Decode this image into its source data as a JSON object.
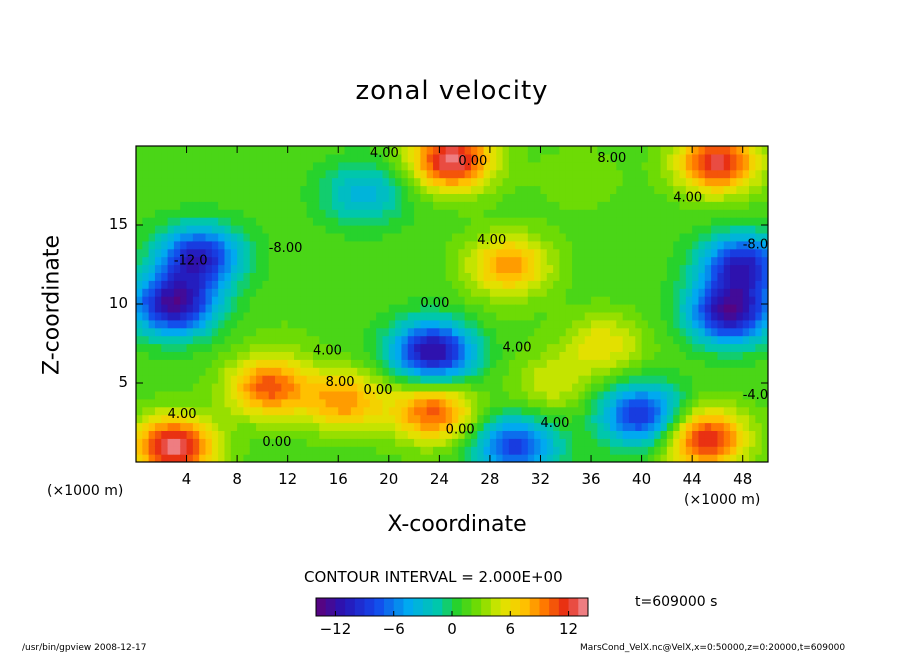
{
  "chart_data": {
    "type": "heatmap",
    "title": "zonal velocity",
    "xlabel": "X-coordinate",
    "ylabel": "Z-coordinate",
    "x_unit": "(×1000 m)",
    "y_unit": "(×1000 m)",
    "xlim": [
      0,
      50
    ],
    "ylim": [
      0,
      20
    ],
    "x_ticks": [
      "4",
      "8",
      "12",
      "16",
      "20",
      "24",
      "28",
      "32",
      "36",
      "40",
      "44",
      "48"
    ],
    "y_ticks": [
      "5",
      "10",
      "15"
    ],
    "contour_interval_text": "CONTOUR INTERVAL = 2.000E+00",
    "colorbar": {
      "range": [
        -14,
        14
      ],
      "ticks": [
        "−12",
        "−6",
        "0",
        "6",
        "12"
      ]
    },
    "contour_labels": [
      "4.00",
      "0.00",
      "-8.00",
      "-12.0",
      "4.00",
      "8.00",
      "0.00",
      "4.00",
      "0.00",
      "-8.00",
      "4.00",
      "0.00",
      "8.00",
      "4.00",
      "4.00",
      "0.00",
      "4.00",
      "-4.00"
    ],
    "features": [
      {
        "x": 10.5,
        "z": 4.8,
        "value": 11
      },
      {
        "x": 16.5,
        "z": 3.9,
        "value": 9
      },
      {
        "x": 23.5,
        "z": 3.2,
        "value": 11
      },
      {
        "x": 23.5,
        "z": 7.0,
        "value": -13
      },
      {
        "x": 29.5,
        "z": 12.5,
        "value": 9
      },
      {
        "x": 37.0,
        "z": 7.5,
        "value": 6
      },
      {
        "x": 3.0,
        "z": 10.0,
        "value": -13
      },
      {
        "x": 5.0,
        "z": 13.0,
        "value": -11
      },
      {
        "x": 47.0,
        "z": 9.5,
        "value": -13
      },
      {
        "x": 48.0,
        "z": 12.5,
        "value": -11
      },
      {
        "x": 40.0,
        "z": 3.0,
        "value": -10
      },
      {
        "x": 30.0,
        "z": 1.0,
        "value": -9
      },
      {
        "x": 28.0,
        "z": 9.0,
        "value": 2
      },
      {
        "x": 18.0,
        "z": 17.0,
        "value": -4
      },
      {
        "x": 35.0,
        "z": 18.0,
        "value": 3
      },
      {
        "x": 25.0,
        "z": 19.2,
        "value": 14
      },
      {
        "x": 46.0,
        "z": 19.0,
        "value": 13
      },
      {
        "x": 3.0,
        "z": 1.0,
        "value": 14
      },
      {
        "x": 45.0,
        "z": 1.5,
        "value": 13
      },
      {
        "x": 12.0,
        "z": 8.0,
        "value": 2
      },
      {
        "x": 33.0,
        "z": 5.0,
        "value": 5
      }
    ]
  },
  "time_text": "t=609000 s",
  "footer_left": "/usr/bin/gpview   2008-12-17",
  "footer_right": "MarsCond_VelX.nc@VelX,x=0:50000,z=0:20000,t=609000"
}
